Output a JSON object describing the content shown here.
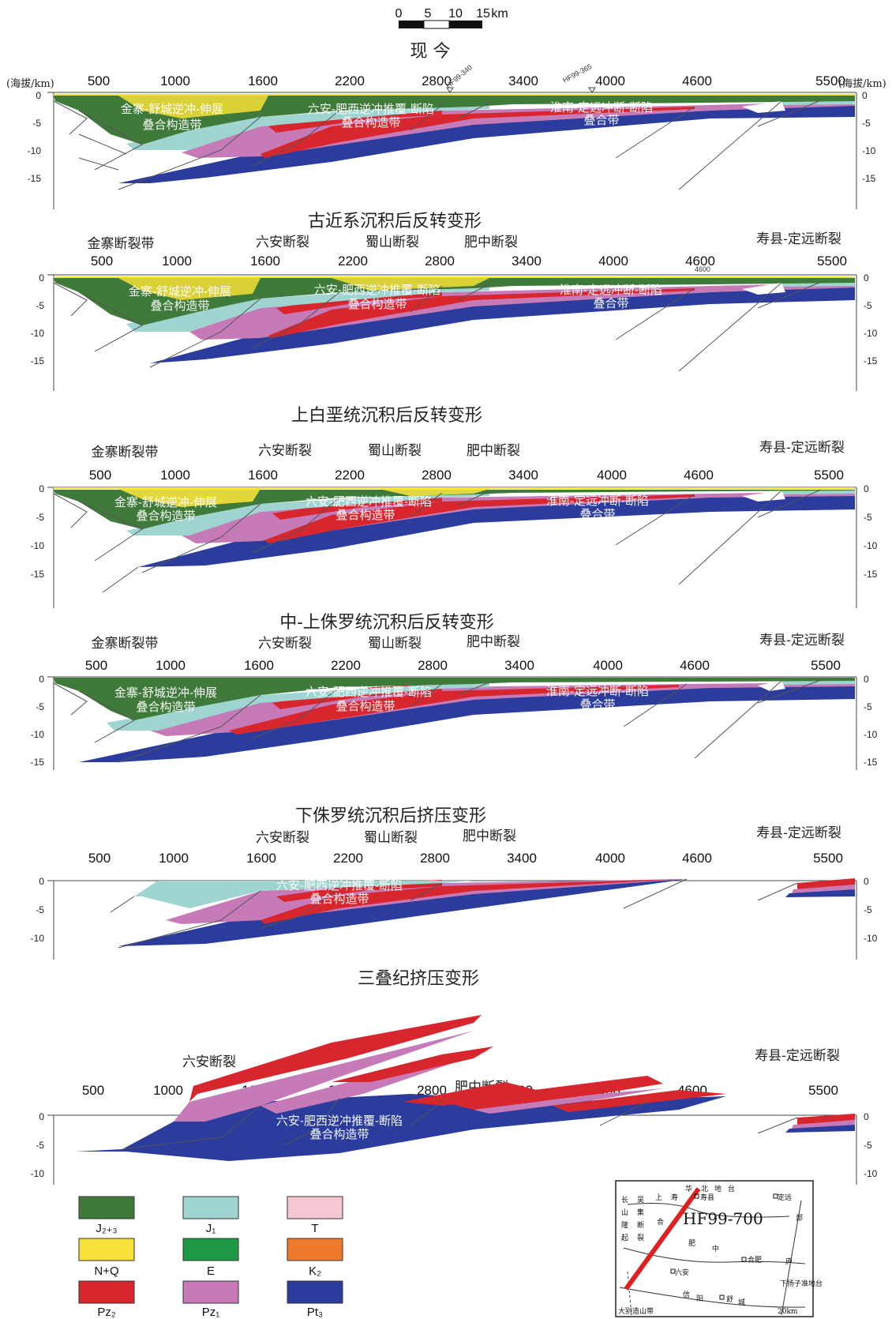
{
  "scale_bar": {
    "ticks": [
      "0",
      "5",
      "10",
      "15"
    ],
    "unit": "km"
  },
  "axis_units": {
    "left": "(海拔/km)",
    "right": "(海拔/km)"
  },
  "colors": {
    "J23": "#3f7a3a",
    "J1": "#9fd4d0",
    "T": "#f5c8d2",
    "NQ": "#f6e13a",
    "E": "#1e9a47",
    "K2": "#ee7a2e",
    "Pz2": "#d7262d",
    "Pz1": "#c77ab8",
    "Pt3": "#2b3c9c"
  },
  "panels": [
    {
      "id": "present",
      "title": "现 今",
      "x_ticks": [
        "500",
        "1000",
        "1600",
        "2200",
        "2800",
        "3400",
        "4000",
        "4600",
        "5500"
      ],
      "z_ticks": [
        "0",
        "-5",
        "-10",
        "-15"
      ],
      "wells": [
        "HF99-340",
        "HF99-365"
      ],
      "faults": [],
      "zones": [
        {
          "l1": "金寨-舒城逆冲-伸展",
          "l2": "叠合构造带"
        },
        {
          "l1": "六安-肥西逆冲推覆-断陷",
          "l2": "叠合构造带"
        },
        {
          "l1": "淮南-定远冲断-断陷",
          "l2": "叠合带"
        }
      ]
    },
    {
      "id": "post-paleogene",
      "title": "古近系沉积后反转变形",
      "x_ticks": [
        "500",
        "1000",
        "1600",
        "2200",
        "2800",
        "3400",
        "4000",
        "4600",
        "5500"
      ],
      "z_ticks": [
        "0",
        "-5",
        "-10",
        "-15"
      ],
      "extra_tick": "4600",
      "faults": [
        "金寨断裂带",
        "六安断裂",
        "蜀山断裂",
        "肥中断裂",
        "寿县-定远断裂"
      ],
      "zones": [
        {
          "l1": "金寨-舒城逆冲-伸展",
          "l2": "叠合构造带"
        },
        {
          "l1": "六安-肥西逆冲推覆-断陷",
          "l2": "叠合构造带"
        },
        {
          "l1": "淮南-定远冲断-断陷",
          "l2": "叠合带"
        }
      ]
    },
    {
      "id": "post-upper-cretaceous",
      "title": "上白垩统沉积后反转变形",
      "x_ticks": [
        "500",
        "1000",
        "1600",
        "2200",
        "2800",
        "3400",
        "4000",
        "4600",
        "5500"
      ],
      "z_ticks": [
        "0",
        "-5",
        "-10",
        "-15"
      ],
      "faults": [
        "金寨断裂带",
        "六安断裂",
        "蜀山断裂",
        "肥中断裂",
        "寿县-定远断裂"
      ],
      "zones": [
        {
          "l1": "金寨-舒城逆冲-伸展",
          "l2": "叠合构造带"
        },
        {
          "l1": "六安-肥西逆冲推覆-断陷",
          "l2": "叠合构造带"
        },
        {
          "l1": "淮南-定远冲断-断陷",
          "l2": "叠合带"
        }
      ]
    },
    {
      "id": "post-middle-upper-jurassic",
      "title": "中-上侏罗统沉积后反转变形",
      "x_ticks": [
        "500",
        "1000",
        "1600",
        "2200",
        "2800",
        "3400",
        "4000",
        "4600",
        "5500"
      ],
      "z_ticks": [
        "0",
        "-5",
        "-10",
        "-15"
      ],
      "faults": [
        "金寨断裂带",
        "六安断裂",
        "蜀山断裂",
        "肥中断裂",
        "寿县-定远断裂"
      ],
      "zones": [
        {
          "l1": "金寨-舒城逆冲-伸展",
          "l2": "叠合构造带"
        },
        {
          "l1": "六安-肥西逆冲推覆-断陷",
          "l2": "叠合构造带"
        },
        {
          "l1": "淮南-定远冲断-断陷",
          "l2": "叠合带"
        }
      ]
    },
    {
      "id": "post-lower-jurassic",
      "title": "下侏罗统沉积后挤压变形",
      "x_ticks": [
        "500",
        "1000",
        "1600",
        "2200",
        "2800",
        "3400",
        "4000",
        "4600",
        "5500"
      ],
      "z_ticks": [
        "0",
        "-5",
        "-10"
      ],
      "faults": [
        "六安断裂",
        "蜀山断裂",
        "肥中断裂",
        "寿县-定远断裂"
      ],
      "zones": [
        {
          "l1": "六安-肥西逆冲推覆-断陷",
          "l2": "叠合构造带"
        }
      ]
    },
    {
      "id": "triassic",
      "title": "三叠纪挤压变形",
      "x_ticks": [
        "500",
        "1000",
        "1600",
        "2200",
        "2800",
        "3400",
        "4000",
        "4600",
        "5500"
      ],
      "z_ticks": [
        "0",
        "-5",
        "-10"
      ],
      "faults": [
        "六安断裂",
        "肥中断裂",
        "寿县-定远断裂"
      ],
      "zones": [
        {
          "l1": "六安-肥西逆冲推覆-断陷",
          "l2": "叠合构造带"
        }
      ]
    }
  ],
  "legend": [
    {
      "key": "J23",
      "label": "J₂₊₃"
    },
    {
      "key": "J1",
      "label": "J₁"
    },
    {
      "key": "T",
      "label": "T"
    },
    {
      "key": "NQ",
      "label": "N+Q"
    },
    {
      "key": "E",
      "label": "E"
    },
    {
      "key": "K2",
      "label": "K₂"
    },
    {
      "key": "Pz2",
      "label": "Pz₂"
    },
    {
      "key": "Pz1",
      "label": "Pz₁"
    },
    {
      "key": "Pt3",
      "label": "Pt₃"
    }
  ],
  "inset_map": {
    "profile": "HF99-700",
    "labels": [
      "华",
      "北",
      "地",
      "台",
      "寿县",
      "定远",
      "长",
      "山",
      "隆",
      "起",
      "吴",
      "集",
      "断",
      "裂",
      "上",
      "寿",
      "合",
      "肥",
      "中",
      "六安",
      "合肥",
      "信",
      "阳",
      "舒",
      "城",
      "大别造山带",
      "下扬子准地台",
      "庐",
      "郯",
      "20km"
    ]
  }
}
